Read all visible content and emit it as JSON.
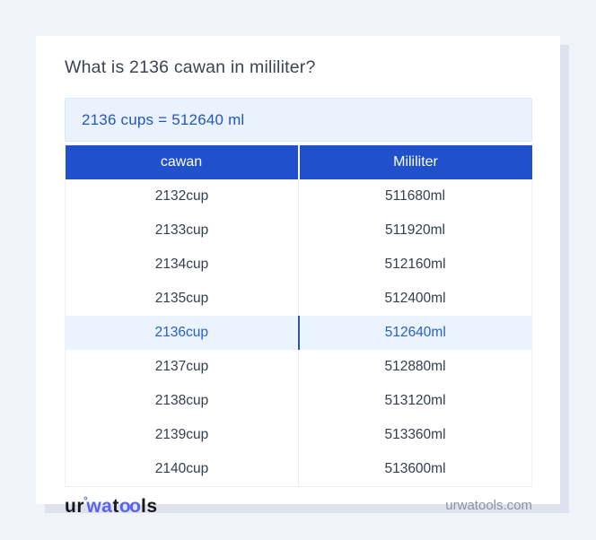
{
  "colors": {
    "page-bg": "#f0f3f9",
    "card-bg": "#ffffff",
    "card-shadow": "#dde2ee",
    "title-text": "#3d4350",
    "answer-bg": "#eaf2fd",
    "answer-border": "#dbe8f8",
    "answer-text": "#2456c2",
    "header-bg": "#2150cd",
    "header-text": "#ffffff",
    "row-text": "#363e4c",
    "row-divider": "#ededf1",
    "highlight-bg": "#eaf3fe",
    "highlight-text": "#2660c8",
    "highlight-divider": "#2a59a8",
    "footer-text": "#8d929e",
    "logo-dark": "#17181c",
    "logo-accent": "#5b63ee"
  },
  "card": {
    "title": "What is 2136 cawan in mililiter?",
    "answer": "2136 cups = 512640 ml"
  },
  "table": {
    "headers": [
      "cawan",
      "Mililiter"
    ],
    "rows": [
      {
        "cawan": "2132cup",
        "ml": "511680ml"
      },
      {
        "cawan": "2133cup",
        "ml": "511920ml"
      },
      {
        "cawan": "2134cup",
        "ml": "512160ml"
      },
      {
        "cawan": "2135cup",
        "ml": "512400ml"
      },
      {
        "cawan": "2136cup",
        "ml": "512640ml"
      },
      {
        "cawan": "2137cup",
        "ml": "512880ml"
      },
      {
        "cawan": "2138cup",
        "ml": "513120ml"
      },
      {
        "cawan": "2139cup",
        "ml": "513360ml"
      },
      {
        "cawan": "2140cup",
        "ml": "513600ml"
      }
    ],
    "highlighted_row": "2136cup"
  },
  "footer": {
    "logo": {
      "ur": "ur",
      "ring": "°",
      "wa": "wa",
      "t": "t",
      "oo": "oo",
      "ls": "ls"
    },
    "site": "urwatools.com"
  }
}
